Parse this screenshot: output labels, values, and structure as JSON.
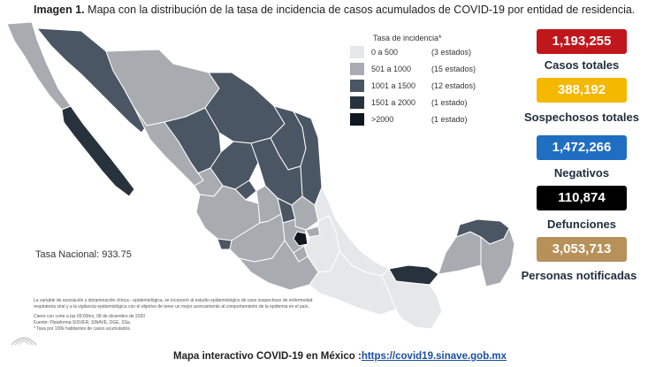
{
  "header": {
    "label": "Imagen 1.",
    "text": "Mapa con la distribución de la tasa de incidencia de casos acumulados de COVID-19 por entidad de residencia."
  },
  "legend": {
    "title": "Tasa de incidencia*",
    "rows": [
      {
        "range": "0 a 500",
        "count": "(3 estados)",
        "color": "#e6e7e8"
      },
      {
        "range": "501 a 1000",
        "count": "(15 estados)",
        "color": "#a8abb0"
      },
      {
        "range": "1001 a 1500",
        "count": "(12 estados)",
        "color": "#4a5663"
      },
      {
        "range": "1501 a 2000",
        "count": "(1 estado)",
        "color": "#27323d"
      },
      {
        "range": ">2000",
        "count": "(1 estado)",
        "color": "#0f1720"
      }
    ]
  },
  "stats": [
    {
      "value": "1,193,255",
      "label": "Casos totales",
      "color": "#c0171c"
    },
    {
      "value": "388,192",
      "label": "Sospechosos totales",
      "color": "#f5b800"
    },
    {
      "value": "1,472,266",
      "label": "Negativos",
      "color": "#1f6ec2"
    },
    {
      "value": "110,874",
      "label": "Defunciones",
      "color": "#000000"
    },
    {
      "value": "3,053,713",
      "label": "Personas notificadas",
      "color": "#b8905a"
    }
  ],
  "tasa_nacional": "Tasa Nacional: 933.75",
  "notes": {
    "p1": "La variable de asociación y dictaminación clínica - epidemiológica, se incorporó al estudio epidemiológico de caso sospechoso de enfermedad respiratoria viral y a la vigilancia epidemiológica con el objetivo de tener un mejor acercamiento al comportamiento de la epidemia en el país.",
    "p2": "Cierre con corte a las 09:00hrs, 08 de diciembre de 2020",
    "p3": "Fuente: Plataforma SISVER, SINAVE, DGE, SSa.",
    "p4": "* Tasa por 100k habitantes de casos acumulados."
  },
  "footer": {
    "text": "Mapa interactivo COVID-19 en México :",
    "link": "https://covid19.sinave.gob.mx"
  },
  "colors": {
    "c0": "#e6e7e8",
    "c1": "#a8abb0",
    "c2": "#4a5663",
    "c3": "#27323d",
    "c4": "#0f1720"
  }
}
